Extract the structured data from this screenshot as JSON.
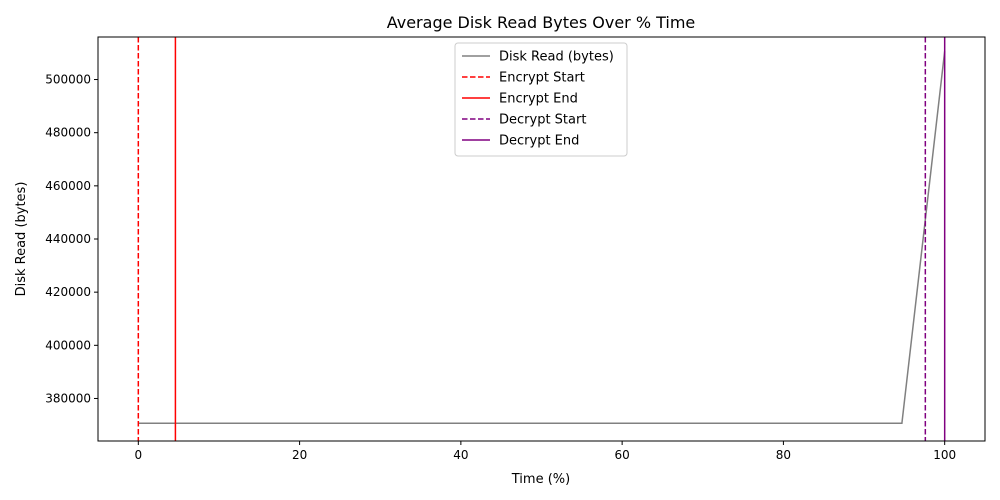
{
  "chart_data": {
    "type": "line",
    "title": "Average Disk Read Bytes Over % Time",
    "xlabel": "Time (%)",
    "ylabel": "Disk Read (bytes)",
    "xlim": [
      -5,
      105
    ],
    "ylim": [
      364000,
      516000
    ],
    "xticks": [
      0,
      20,
      40,
      60,
      80,
      100
    ],
    "yticks": [
      380000,
      400000,
      420000,
      440000,
      460000,
      480000,
      500000
    ],
    "grid": false,
    "legend_position": "top-center",
    "series": [
      {
        "name": "Disk Read (bytes)",
        "color": "#808080",
        "x": [
          0,
          94.7,
          100
        ],
        "y": [
          370700,
          370700,
          510700
        ]
      }
    ],
    "vlines": [
      {
        "name": "Encrypt Start",
        "x": 0,
        "color": "#ff0000",
        "dashed": true
      },
      {
        "name": "Encrypt End",
        "x": 4.6,
        "color": "#ff0000",
        "dashed": false
      },
      {
        "name": "Decrypt Start",
        "x": 97.6,
        "color": "#800080",
        "dashed": true
      },
      {
        "name": "Decrypt End",
        "x": 100,
        "color": "#800080",
        "dashed": false
      }
    ]
  }
}
